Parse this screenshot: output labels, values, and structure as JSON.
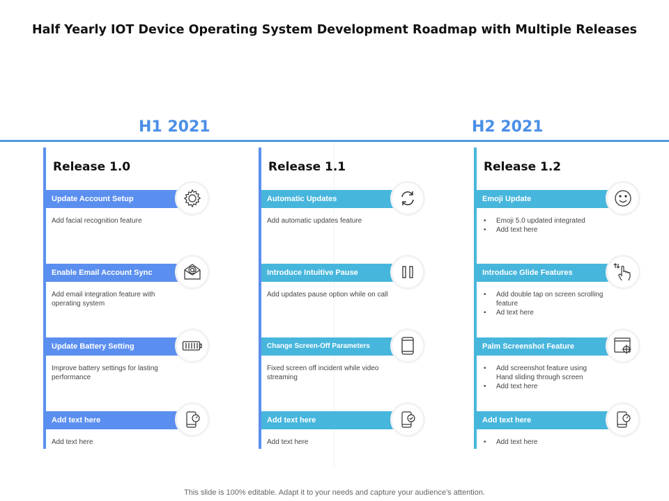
{
  "title": "Half Yearly IOT Device Operating System Development Roadmap with Multiple Releases",
  "halves": [
    "H1 2021",
    "H2 2021"
  ],
  "footer": "This slide is 100% editable. Adapt it to your needs and capture your audience's attention.",
  "colors": {
    "blue": "#5b8fef",
    "cyan": "#47b6dc",
    "timeline": "#4d9bde",
    "heading": "#4a8fe7"
  },
  "columns": [
    {
      "release": "Release 1.0",
      "items": [
        {
          "label": "Update Account Setup",
          "icon": "gear-icon",
          "desc": [
            "Add facial recognition feature"
          ],
          "bullets": false
        },
        {
          "label": "Enable Email Account Sync",
          "icon": "email-icon",
          "desc": [
            "Add email integration feature with operating system"
          ],
          "bullets": false
        },
        {
          "label": "Update Battery Setting",
          "icon": "battery-icon",
          "desc": [
            "Improve battery settings for lasting performance"
          ],
          "bullets": false
        },
        {
          "label": "Add text here",
          "icon": "phone-speed-icon",
          "desc": [
            "Add text here"
          ],
          "bullets": false
        }
      ]
    },
    {
      "release": "Release 1.1",
      "items": [
        {
          "label": "Automatic Updates",
          "icon": "refresh-icon",
          "desc": [
            "Add automatic updates feature"
          ],
          "bullets": false
        },
        {
          "label": "Introduce Intuitive Pause",
          "icon": "pause-icon",
          "desc": [
            "Add updates pause option while on call"
          ],
          "bullets": false
        },
        {
          "label": "Change Screen-Off Parameters",
          "icon": "tablet-icon",
          "desc": [
            "Fixed screen off incident while video streaming"
          ],
          "bullets": false
        },
        {
          "label": "Add text here",
          "icon": "phone-check-icon",
          "desc": [
            "Add text here"
          ],
          "bullets": false
        }
      ]
    },
    {
      "release": "Release 1.2",
      "items": [
        {
          "label": "Emoji Update",
          "icon": "emoji-icon",
          "desc": [
            "Emoji  5.0 updated integrated",
            "Add text here"
          ],
          "bullets": true
        },
        {
          "label": "Introduce Glide Features",
          "icon": "hand-swipe-icon",
          "desc": [
            "Add double tap on screen scrolling feature",
            "Ad text here"
          ],
          "bullets": true
        },
        {
          "label": "Palm Screenshot Feature",
          "icon": "screenshot-icon",
          "desc": [
            "Add screenshot feature using Hand sliding through screen",
            "Add text here"
          ],
          "bullets": true
        },
        {
          "label": "Add text here",
          "icon": "phone-speed-icon",
          "desc": [
            "Add text here"
          ],
          "bullets": true
        }
      ]
    }
  ]
}
